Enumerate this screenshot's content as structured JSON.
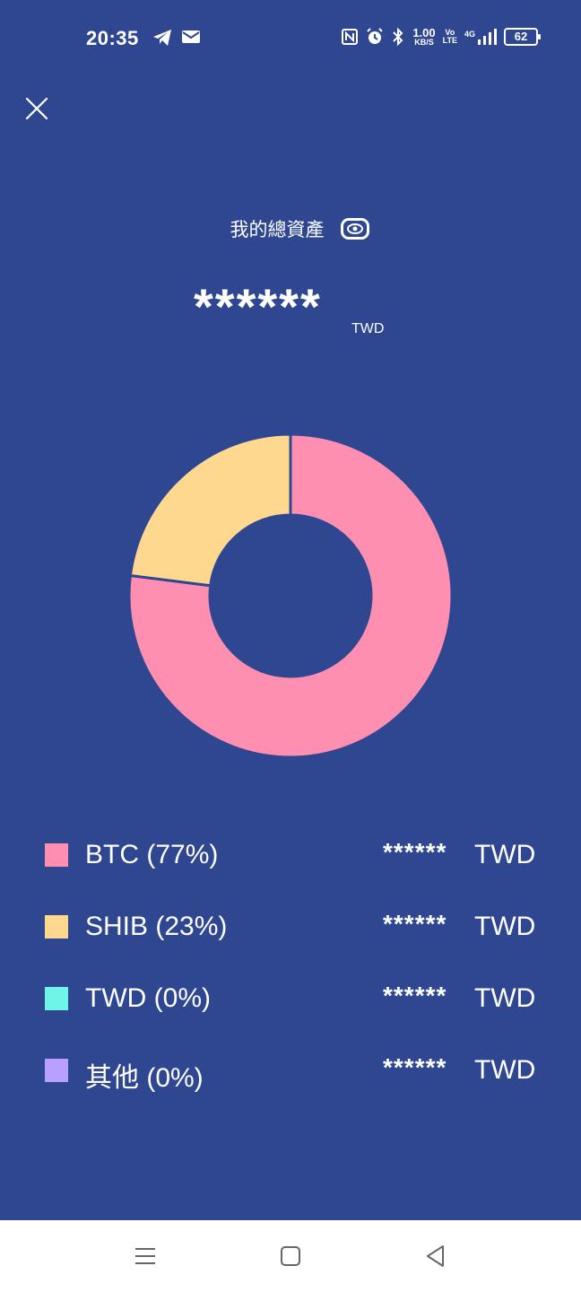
{
  "status_bar": {
    "time": "20:35",
    "network_speed_value": "1.00",
    "network_speed_unit": "KB/S",
    "volte_top": "Vo",
    "volte_bottom": "LTE",
    "signal_type": "4G",
    "battery": "62",
    "icons": [
      "telegram-icon",
      "mail-icon",
      "nfc-icon",
      "alarm-icon",
      "bluetooth-icon",
      "signal-icon"
    ]
  },
  "header": {
    "title": "我的總資產",
    "total_value": "******",
    "total_unit": "TWD"
  },
  "colors": {
    "background": "#2f4690",
    "btc": "#ff8fb0",
    "shib": "#ffd88f",
    "twd": "#6ff5e8",
    "other": "#b9a0ff"
  },
  "chart_data": {
    "type": "pie",
    "donut": true,
    "categories": [
      "BTC",
      "SHIB",
      "TWD",
      "其他"
    ],
    "values": [
      77,
      23,
      0,
      0
    ],
    "colors": [
      "#ff8fb0",
      "#ffd88f",
      "#6ff5e8",
      "#b9a0ff"
    ]
  },
  "legend": [
    {
      "label": "BTC (77%)",
      "amount": "******",
      "unit": "TWD",
      "color": "#ff8fb0"
    },
    {
      "label": "SHIB (23%)",
      "amount": "******",
      "unit": "TWD",
      "color": "#ffd88f"
    },
    {
      "label": "TWD (0%)",
      "amount": "******",
      "unit": "TWD",
      "color": "#6ff5e8"
    },
    {
      "label": "其他 (0%)",
      "amount": "******",
      "unit": "TWD",
      "color": "#b9a0ff"
    }
  ]
}
